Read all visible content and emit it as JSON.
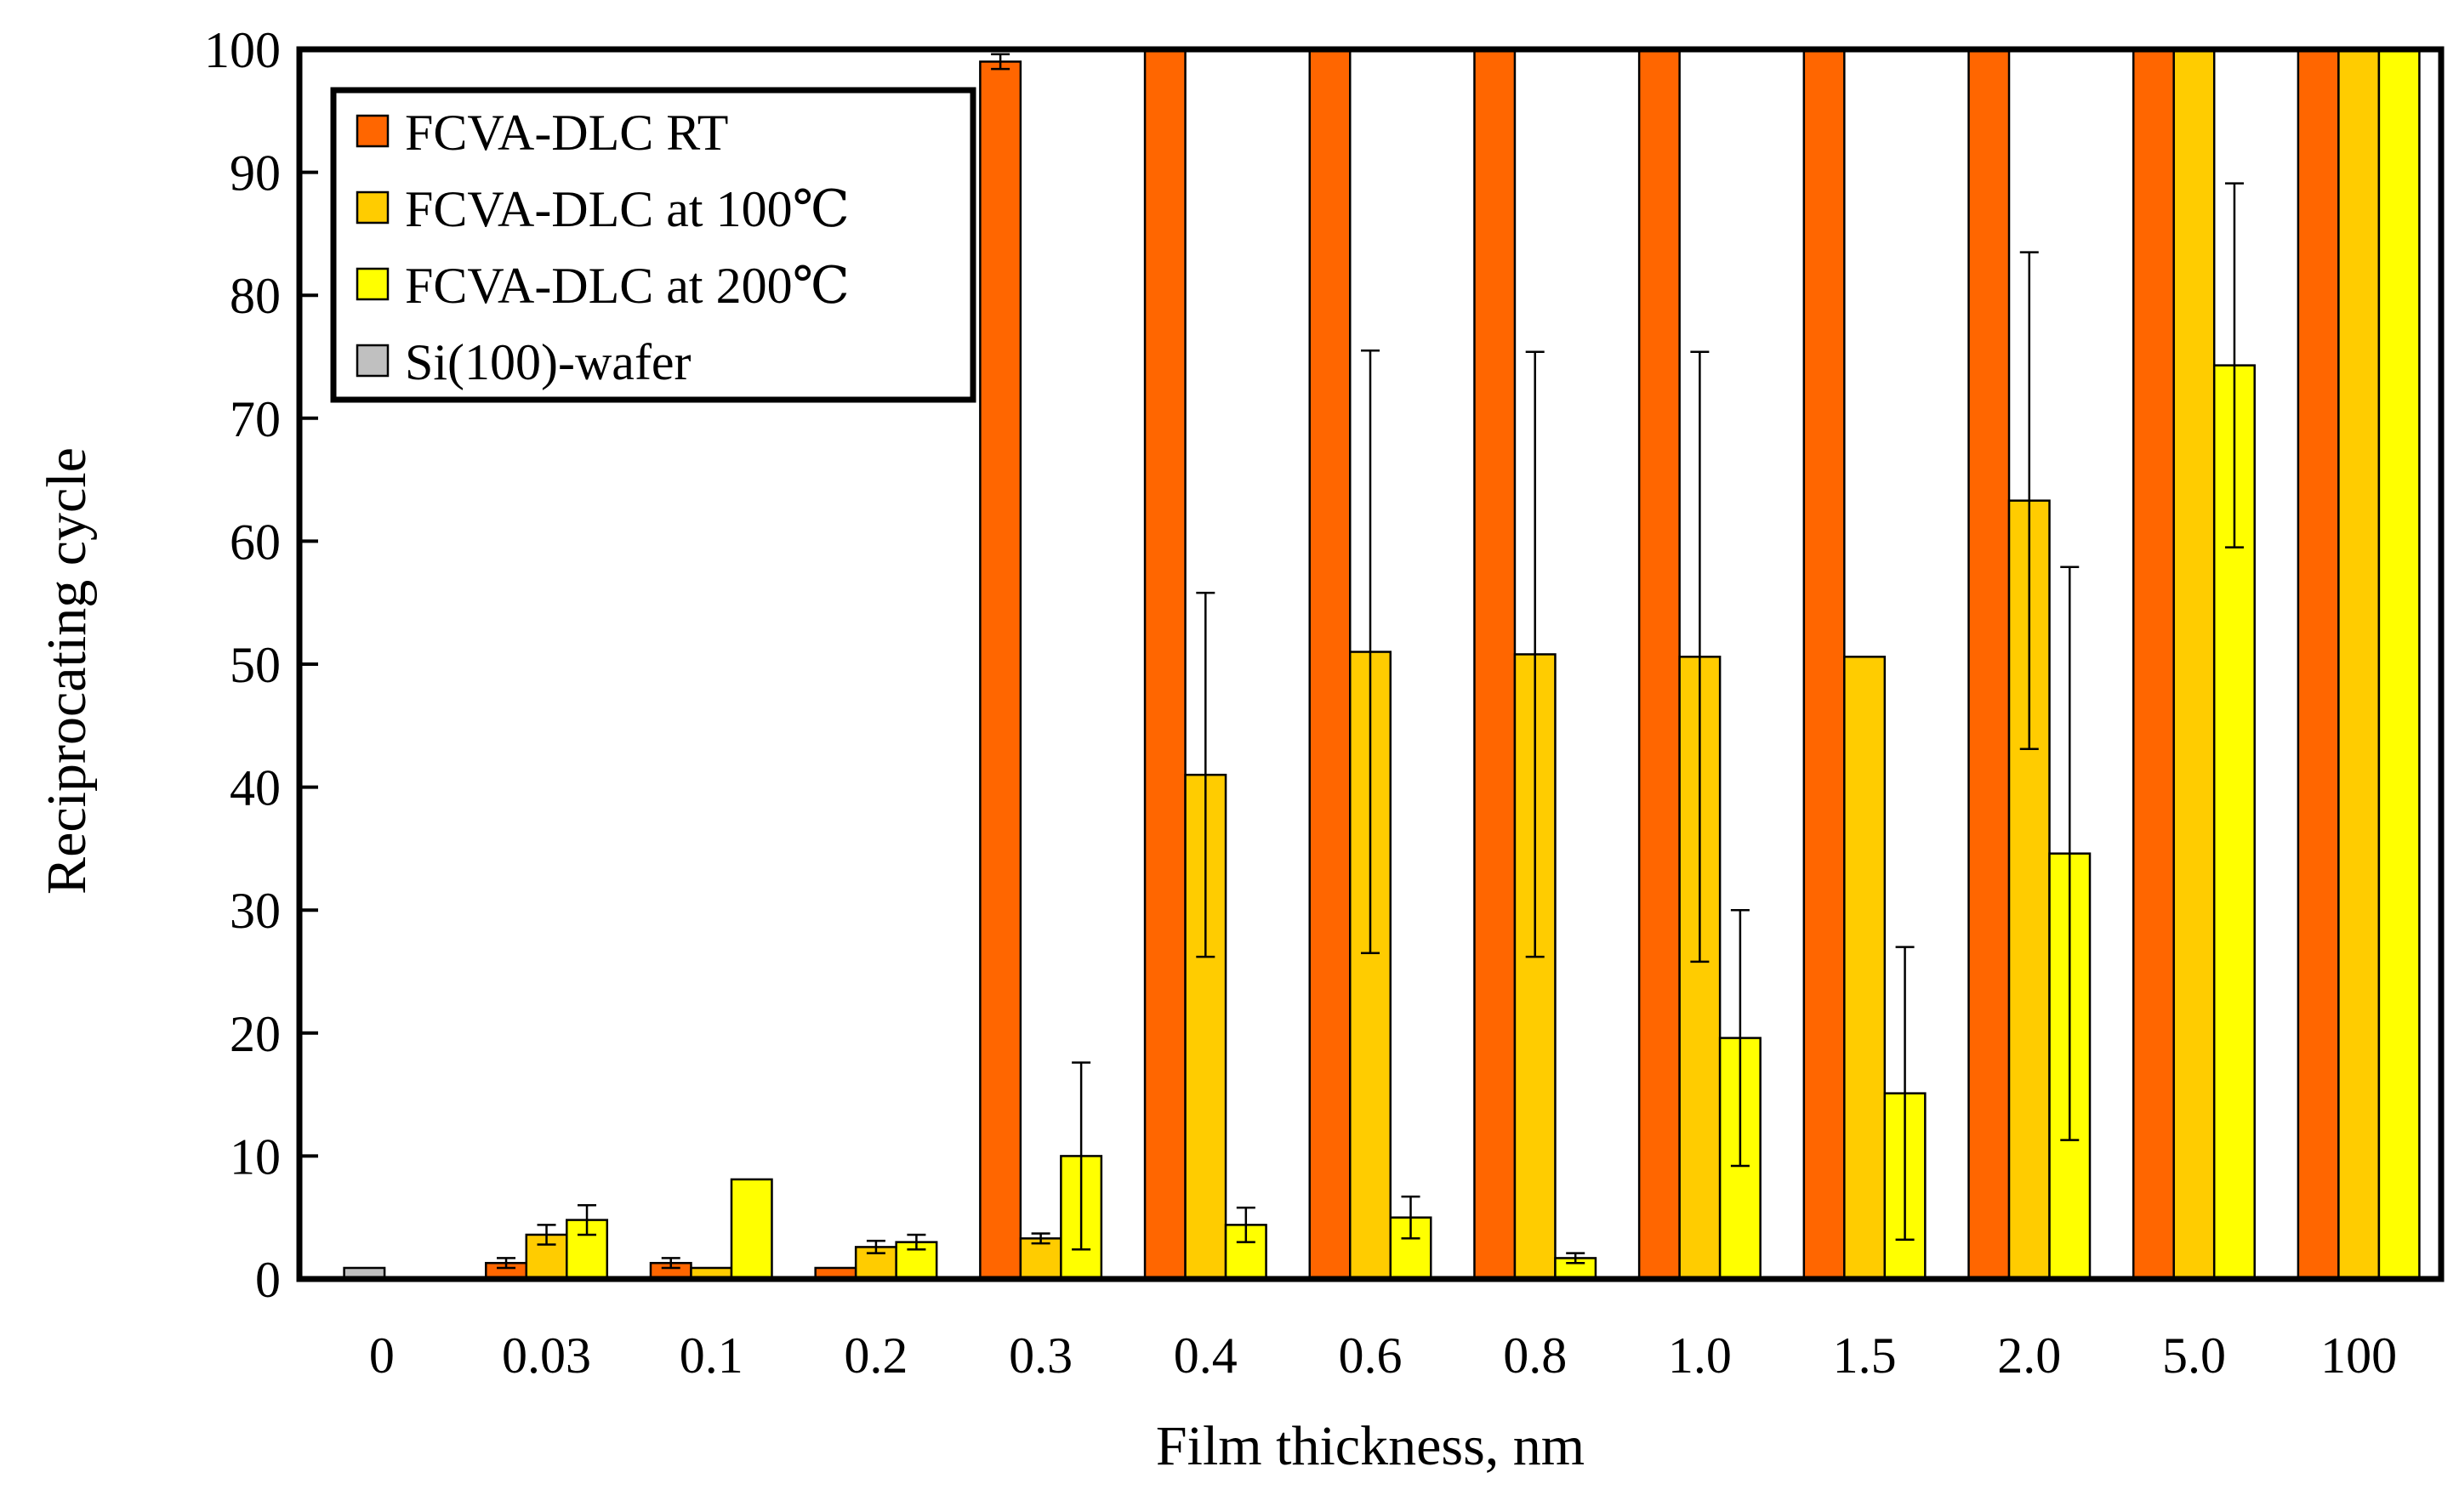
{
  "chart_data": {
    "type": "bar",
    "title": "",
    "xlabel": "Film thickness, nm",
    "ylabel": "Reciprocating cycle",
    "ylim": [
      0,
      100
    ],
    "yticks": [
      "0",
      "10",
      "20",
      "30",
      "40",
      "50",
      "60",
      "70",
      "80",
      "90",
      "100"
    ],
    "categories": [
      "0",
      "0.03",
      "0.1",
      "0.2",
      "0.3",
      "0.4",
      "0.6",
      "0.8",
      "1.0",
      "1.5",
      "2.0",
      "5.0",
      "100"
    ],
    "series": [
      {
        "name": "FCVA-DLC RT",
        "color": "#FF6600",
        "values": [
          null,
          1.3,
          1.3,
          0.9,
          99,
          100,
          100,
          100,
          100,
          100,
          100,
          100,
          100
        ],
        "errors": [
          null,
          0.4,
          0.4,
          0,
          0.6,
          0,
          0,
          0,
          0,
          0,
          0,
          0,
          0
        ]
      },
      {
        "name": "FCVA-DLC at 100℃",
        "color": "#FFCC00",
        "values": [
          null,
          3.6,
          0.9,
          2.6,
          3.3,
          41,
          51,
          50.8,
          50.6,
          50.6,
          63.3,
          100,
          100
        ],
        "errors": [
          null,
          0.8,
          0,
          0.5,
          0.4,
          14.8,
          24.5,
          24.6,
          24.8,
          0,
          20.2,
          0,
          0
        ]
      },
      {
        "name": "FCVA-DLC at 200℃",
        "color": "#FFFF00",
        "values": [
          null,
          4.8,
          8.1,
          3,
          10,
          4.4,
          5,
          1.7,
          19.6,
          15.1,
          34.6,
          74.3,
          100
        ],
        "errors": [
          null,
          1.2,
          0,
          0.6,
          7.6,
          1.4,
          1.7,
          0.4,
          10.4,
          11.9,
          23.3,
          14.8,
          0
        ]
      },
      {
        "name": "Si(100)-wafer",
        "color": "#C0C0C0",
        "values": [
          0.9,
          null,
          null,
          null,
          null,
          null,
          null,
          null,
          null,
          null,
          null,
          null,
          null
        ],
        "errors": [
          0,
          null,
          null,
          null,
          null,
          null,
          null,
          null,
          null,
          null,
          null,
          null,
          null
        ]
      }
    ],
    "legend_position": "top-left",
    "grid": false
  }
}
